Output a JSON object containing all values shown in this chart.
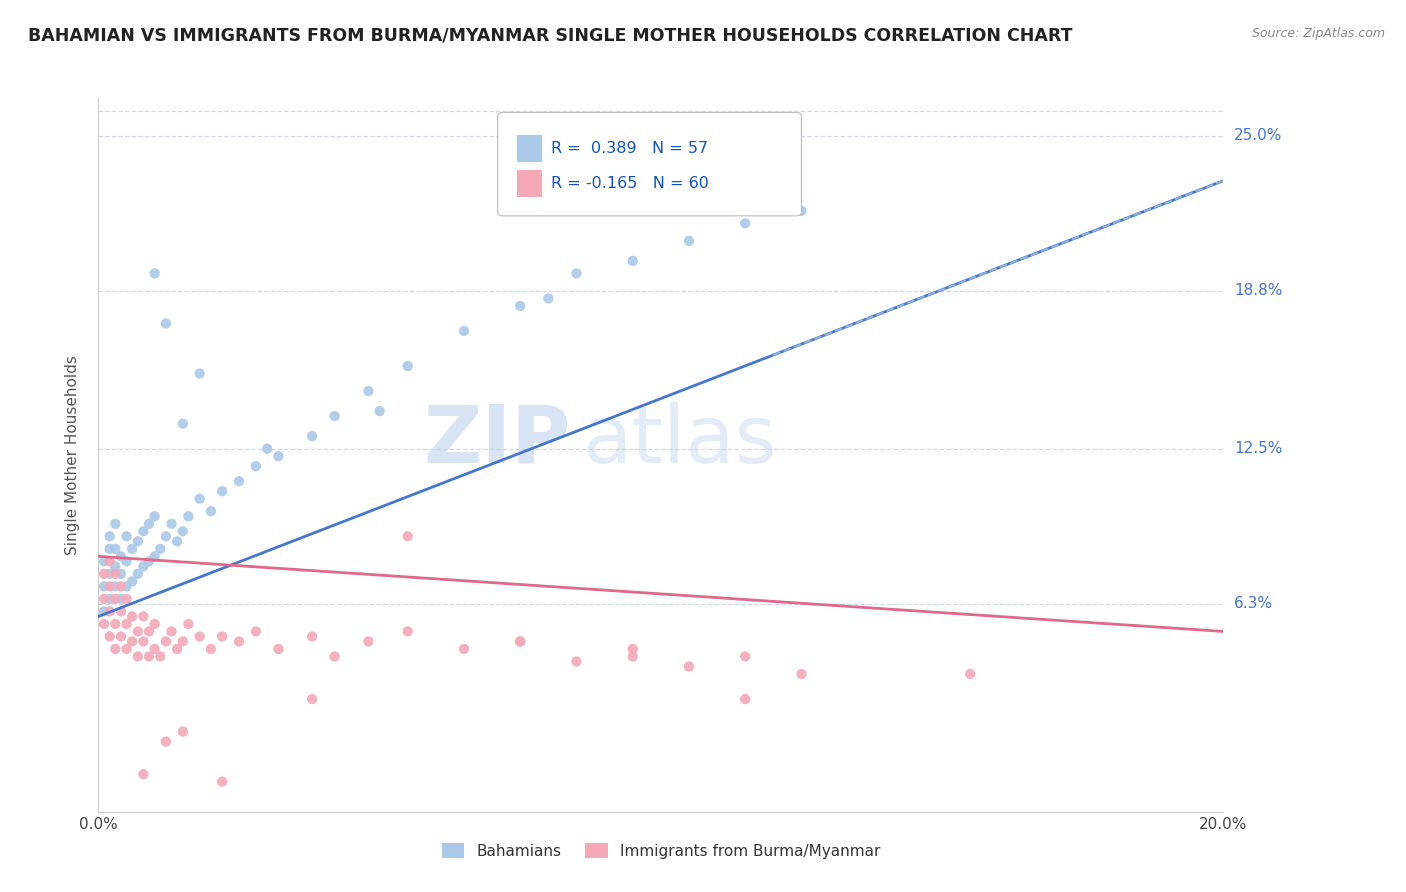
{
  "title": "BAHAMIAN VS IMMIGRANTS FROM BURMA/MYANMAR SINGLE MOTHER HOUSEHOLDS CORRELATION CHART",
  "source": "Source: ZipAtlas.com",
  "ylabel": "Single Mother Households",
  "x_min": 0.0,
  "x_max": 0.2,
  "y_min": -0.02,
  "y_max": 0.265,
  "x_tick_labels": [
    "0.0%",
    "20.0%"
  ],
  "x_tick_pos": [
    0.0,
    0.2
  ],
  "y_tick_labels": [
    "6.3%",
    "12.5%",
    "18.8%",
    "25.0%"
  ],
  "y_tick_values": [
    0.063,
    0.125,
    0.188,
    0.25
  ],
  "grid_color": "#d0d8e8",
  "background_color": "#ffffff",
  "series1_color": "#aac8e8",
  "series2_color": "#f4a8b8",
  "trend1_color": "#4477cc",
  "trend2_color": "#e06888",
  "trend1_dashed_color": "#8ab0dd",
  "R1": 0.389,
  "N1": 57,
  "R2": -0.165,
  "N2": 60,
  "legend_label1": "Bahamians",
  "legend_label2": "Immigrants from Burma/Myanmar",
  "watermark_zip": "ZIP",
  "watermark_atlas": "atlas",
  "series1_x": [
    0.001,
    0.001,
    0.001,
    0.002,
    0.002,
    0.002,
    0.002,
    0.003,
    0.003,
    0.003,
    0.003,
    0.004,
    0.004,
    0.004,
    0.005,
    0.005,
    0.005,
    0.006,
    0.006,
    0.007,
    0.007,
    0.008,
    0.008,
    0.009,
    0.009,
    0.01,
    0.01,
    0.011,
    0.012,
    0.013,
    0.014,
    0.015,
    0.016,
    0.018,
    0.02,
    0.022,
    0.025,
    0.028,
    0.032,
    0.038,
    0.042,
    0.048,
    0.055,
    0.065,
    0.075,
    0.085,
    0.095,
    0.105,
    0.115,
    0.125,
    0.01,
    0.012,
    0.015,
    0.018,
    0.03,
    0.05,
    0.08
  ],
  "series1_y": [
    0.06,
    0.07,
    0.08,
    0.065,
    0.075,
    0.085,
    0.09,
    0.07,
    0.078,
    0.085,
    0.095,
    0.065,
    0.075,
    0.082,
    0.07,
    0.08,
    0.09,
    0.072,
    0.085,
    0.075,
    0.088,
    0.078,
    0.092,
    0.08,
    0.095,
    0.082,
    0.098,
    0.085,
    0.09,
    0.095,
    0.088,
    0.092,
    0.098,
    0.105,
    0.1,
    0.108,
    0.112,
    0.118,
    0.122,
    0.13,
    0.138,
    0.148,
    0.158,
    0.172,
    0.182,
    0.195,
    0.2,
    0.208,
    0.215,
    0.22,
    0.195,
    0.175,
    0.135,
    0.155,
    0.125,
    0.14,
    0.185
  ],
  "series2_x": [
    0.001,
    0.001,
    0.001,
    0.002,
    0.002,
    0.002,
    0.002,
    0.003,
    0.003,
    0.003,
    0.003,
    0.004,
    0.004,
    0.004,
    0.005,
    0.005,
    0.005,
    0.006,
    0.006,
    0.007,
    0.007,
    0.008,
    0.008,
    0.009,
    0.009,
    0.01,
    0.01,
    0.011,
    0.012,
    0.013,
    0.014,
    0.015,
    0.016,
    0.018,
    0.02,
    0.022,
    0.025,
    0.028,
    0.032,
    0.038,
    0.042,
    0.048,
    0.055,
    0.065,
    0.075,
    0.085,
    0.095,
    0.105,
    0.115,
    0.125,
    0.008,
    0.012,
    0.015,
    0.022,
    0.038,
    0.055,
    0.075,
    0.095,
    0.115,
    0.155
  ],
  "series2_y": [
    0.055,
    0.065,
    0.075,
    0.05,
    0.06,
    0.07,
    0.08,
    0.045,
    0.055,
    0.065,
    0.075,
    0.05,
    0.06,
    0.07,
    0.045,
    0.055,
    0.065,
    0.048,
    0.058,
    0.042,
    0.052,
    0.048,
    0.058,
    0.042,
    0.052,
    0.045,
    0.055,
    0.042,
    0.048,
    0.052,
    0.045,
    0.048,
    0.055,
    0.05,
    0.045,
    0.05,
    0.048,
    0.052,
    0.045,
    0.05,
    0.042,
    0.048,
    0.052,
    0.045,
    0.048,
    0.04,
    0.045,
    0.038,
    0.042,
    0.035,
    -0.005,
    0.008,
    0.012,
    -0.008,
    0.025,
    0.09,
    0.048,
    0.042,
    0.025,
    0.035
  ],
  "trend1_x0": 0.0,
  "trend1_y0": 0.058,
  "trend1_x1": 0.2,
  "trend1_y1": 0.232,
  "trend2_x0": 0.0,
  "trend2_y0": 0.082,
  "trend2_x1": 0.2,
  "trend2_y1": 0.052
}
